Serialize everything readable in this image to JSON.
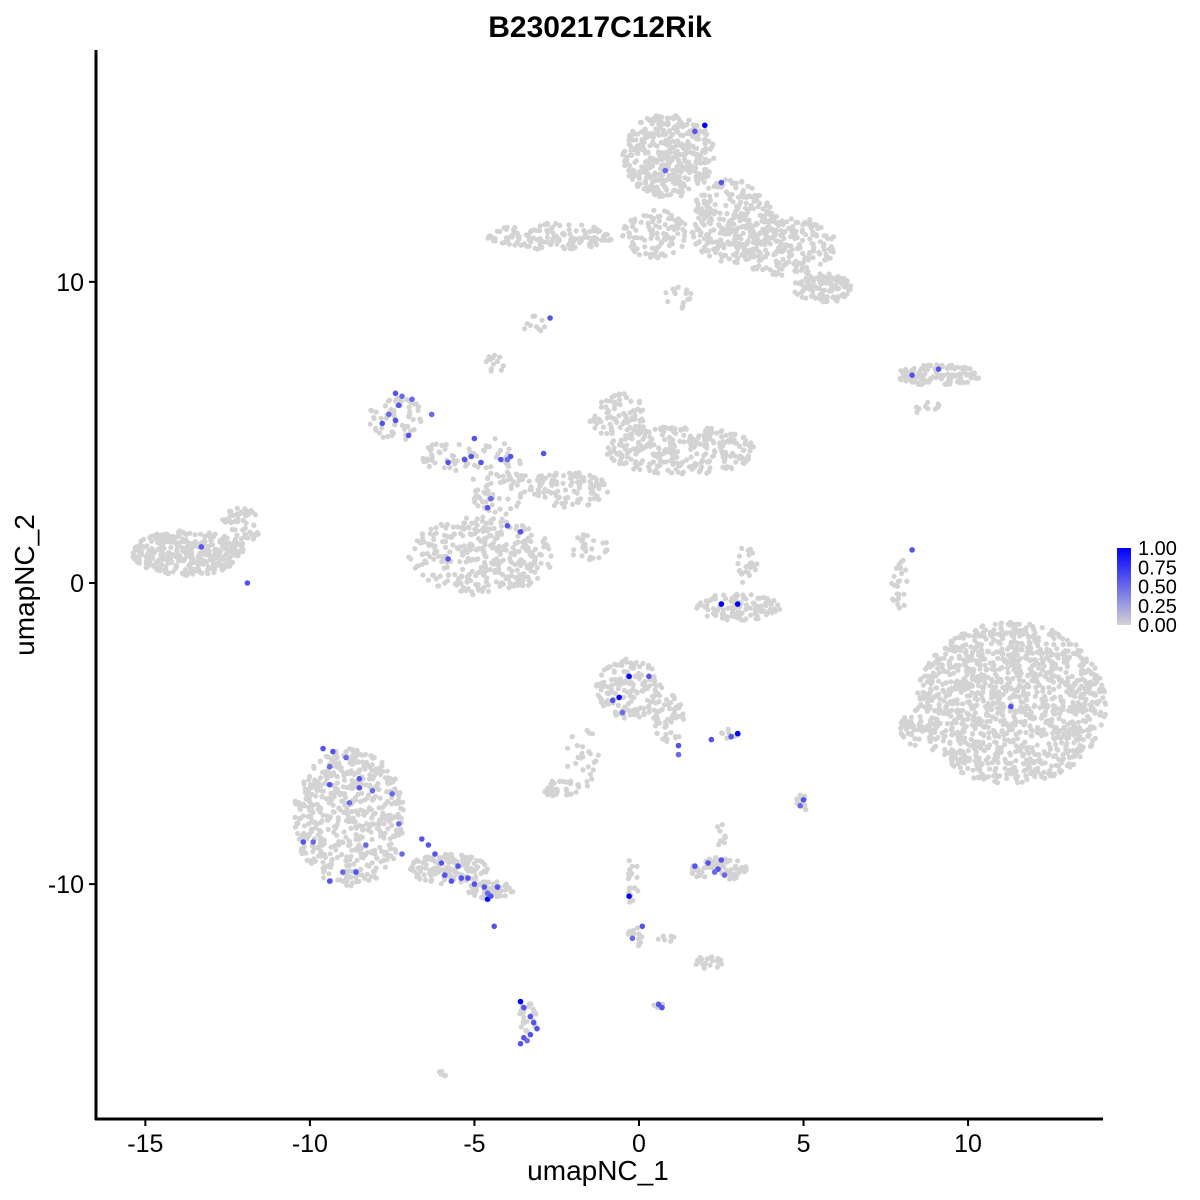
{
  "chart_data": {
    "type": "scatter",
    "title": "B230217C12Rik",
    "xlabel": "umapNC_1",
    "ylabel": "umapNC_2",
    "xlim": [
      -16.5,
      14.1
    ],
    "ylim": [
      -17.8,
      17.7
    ],
    "x_ticks": [
      -15,
      -10,
      -5,
      0,
      5,
      10
    ],
    "y_ticks": [
      -10,
      0,
      10
    ],
    "x_tick_labels": [
      "-15",
      "-10",
      "-5",
      "0",
      "5",
      "10"
    ],
    "y_tick_labels": [
      "-10",
      "0",
      "10"
    ],
    "grid": false,
    "legend_position": "right",
    "color_scale": {
      "low_color": "#d3d3d3",
      "high_color": "#0000ff",
      "min": 0.0,
      "max": 1.0,
      "breaks": [
        1.0,
        0.75,
        0.5,
        0.25,
        0.0
      ],
      "labels": [
        "1.00",
        "0.75",
        "0.50",
        "0.25",
        "0.00"
      ]
    },
    "background_clusters": [
      {
        "cx": 0.9,
        "cy": 14.2,
        "rx": 1.4,
        "ry": 1.4,
        "n": 420
      },
      {
        "cx": 2.8,
        "cy": 12.0,
        "rx": 1.3,
        "ry": 1.4,
        "n": 280
      },
      {
        "cx": 4.4,
        "cy": 11.2,
        "rx": 1.6,
        "ry": 1.0,
        "n": 220
      },
      {
        "cx": 5.6,
        "cy": 9.8,
        "rx": 0.9,
        "ry": 0.5,
        "n": 110
      },
      {
        "cx": 0.5,
        "cy": 11.6,
        "rx": 1.0,
        "ry": 0.8,
        "n": 100
      },
      {
        "cx": -2.7,
        "cy": 11.5,
        "rx": 1.9,
        "ry": 0.45,
        "n": 140
      },
      {
        "cx": 1.2,
        "cy": 9.5,
        "rx": 0.4,
        "ry": 0.5,
        "n": 15
      },
      {
        "cx": -3.2,
        "cy": 8.6,
        "rx": 0.35,
        "ry": 0.3,
        "n": 10
      },
      {
        "cx": -4.4,
        "cy": 7.3,
        "rx": 0.3,
        "ry": 0.35,
        "n": 15
      },
      {
        "cx": 9.1,
        "cy": 6.9,
        "rx": 1.3,
        "ry": 0.35,
        "n": 120
      },
      {
        "cx": 8.8,
        "cy": 5.8,
        "rx": 0.4,
        "ry": 0.3,
        "n": 10
      },
      {
        "cx": 1.3,
        "cy": 4.4,
        "rx": 2.3,
        "ry": 0.8,
        "n": 280
      },
      {
        "cx": -0.6,
        "cy": 5.5,
        "rx": 0.9,
        "ry": 0.8,
        "n": 90
      },
      {
        "cx": -2.2,
        "cy": 3.1,
        "rx": 1.3,
        "ry": 0.6,
        "n": 110
      },
      {
        "cx": -4.3,
        "cy": 3.5,
        "rx": 0.9,
        "ry": 1.3,
        "n": 90
      },
      {
        "cx": -4.8,
        "cy": 0.9,
        "rx": 2.2,
        "ry": 1.3,
        "n": 340
      },
      {
        "cx": -7.4,
        "cy": 5.5,
        "rx": 0.8,
        "ry": 0.8,
        "n": 60
      },
      {
        "cx": -5.8,
        "cy": 4.2,
        "rx": 0.8,
        "ry": 0.5,
        "n": 40
      },
      {
        "cx": -1.5,
        "cy": 1.2,
        "rx": 0.6,
        "ry": 0.5,
        "n": 25
      },
      {
        "cx": -13.7,
        "cy": 1.0,
        "rx": 1.7,
        "ry": 0.75,
        "n": 360
      },
      {
        "cx": -12.1,
        "cy": 1.9,
        "rx": 0.6,
        "ry": 0.6,
        "n": 50
      },
      {
        "cx": 3.0,
        "cy": -0.8,
        "rx": 1.3,
        "ry": 0.45,
        "n": 110
      },
      {
        "cx": 3.2,
        "cy": 0.6,
        "rx": 0.4,
        "ry": 0.6,
        "n": 25
      },
      {
        "cx": 7.9,
        "cy": 0.0,
        "rx": 0.25,
        "ry": 1.0,
        "n": 25
      },
      {
        "cx": 11.3,
        "cy": -4.0,
        "rx": 2.9,
        "ry": 2.7,
        "n": 1300
      },
      {
        "cx": 8.4,
        "cy": -4.8,
        "rx": 0.5,
        "ry": 0.6,
        "n": 40
      },
      {
        "cx": -0.3,
        "cy": -3.5,
        "rx": 1.0,
        "ry": 1.0,
        "n": 160
      },
      {
        "cx": 0.9,
        "cy": -4.5,
        "rx": 0.5,
        "ry": 0.8,
        "n": 60
      },
      {
        "cx": -1.7,
        "cy": -5.8,
        "rx": 0.5,
        "ry": 1.0,
        "n": 25
      },
      {
        "cx": -2.4,
        "cy": -6.8,
        "rx": 0.6,
        "ry": 0.3,
        "n": 40
      },
      {
        "cx": 2.8,
        "cy": -5.0,
        "rx": 0.3,
        "ry": 0.2,
        "n": 10
      },
      {
        "cx": 5.0,
        "cy": -7.3,
        "rx": 0.25,
        "ry": 0.3,
        "n": 12
      },
      {
        "cx": 2.4,
        "cy": -9.5,
        "rx": 0.9,
        "ry": 0.4,
        "n": 70
      },
      {
        "cx": 2.5,
        "cy": -8.3,
        "rx": 0.2,
        "ry": 0.5,
        "n": 10
      },
      {
        "cx": -8.8,
        "cy": -7.8,
        "rx": 1.7,
        "ry": 2.3,
        "n": 560
      },
      {
        "cx": -5.8,
        "cy": -9.5,
        "rx": 1.2,
        "ry": 0.5,
        "n": 130
      },
      {
        "cx": -4.5,
        "cy": -10.2,
        "rx": 0.7,
        "ry": 0.3,
        "n": 60
      },
      {
        "cx": -0.2,
        "cy": -10.0,
        "rx": 0.2,
        "ry": 0.9,
        "n": 20
      },
      {
        "cx": -0.1,
        "cy": -11.7,
        "rx": 0.25,
        "ry": 0.4,
        "n": 15
      },
      {
        "cx": 2.1,
        "cy": -12.6,
        "rx": 0.5,
        "ry": 0.2,
        "n": 25
      },
      {
        "cx": 0.8,
        "cy": -11.8,
        "rx": 0.3,
        "ry": 0.15,
        "n": 6
      },
      {
        "cx": -3.4,
        "cy": -14.4,
        "rx": 0.3,
        "ry": 0.6,
        "n": 25
      },
      {
        "cx": 0.6,
        "cy": -14.0,
        "rx": 0.15,
        "ry": 0.15,
        "n": 5
      },
      {
        "cx": -6.0,
        "cy": -16.3,
        "rx": 0.15,
        "ry": 0.1,
        "n": 5
      }
    ],
    "expressing_points": [
      {
        "x": 2.0,
        "y": 15.2,
        "v": 1.0
      },
      {
        "x": 1.7,
        "y": 15.0,
        "v": 0.6
      },
      {
        "x": 0.8,
        "y": 13.7,
        "v": 0.5
      },
      {
        "x": 2.5,
        "y": 13.3,
        "v": 0.6
      },
      {
        "x": -2.7,
        "y": 8.8,
        "v": 0.6
      },
      {
        "x": 8.3,
        "y": 6.9,
        "v": 0.6
      },
      {
        "x": 9.1,
        "y": 7.1,
        "v": 0.6
      },
      {
        "x": -7.4,
        "y": 6.3,
        "v": 0.6
      },
      {
        "x": -7.2,
        "y": 6.2,
        "v": 0.5
      },
      {
        "x": -7.3,
        "y": 5.9,
        "v": 0.6
      },
      {
        "x": -7.6,
        "y": 5.6,
        "v": 0.5
      },
      {
        "x": -7.8,
        "y": 5.3,
        "v": 0.6
      },
      {
        "x": -7.4,
        "y": 5.4,
        "v": 0.6
      },
      {
        "x": -7.0,
        "y": 4.9,
        "v": 0.6
      },
      {
        "x": -6.3,
        "y": 5.6,
        "v": 0.5
      },
      {
        "x": -6.9,
        "y": 6.1,
        "v": 0.5
      },
      {
        "x": -5.0,
        "y": 4.8,
        "v": 0.6
      },
      {
        "x": -5.1,
        "y": 4.2,
        "v": 0.6
      },
      {
        "x": -5.3,
        "y": 4.1,
        "v": 0.6
      },
      {
        "x": -4.8,
        "y": 4.0,
        "v": 0.6
      },
      {
        "x": -5.8,
        "y": 4.0,
        "v": 0.6
      },
      {
        "x": -4.2,
        "y": 4.1,
        "v": 0.6
      },
      {
        "x": -3.9,
        "y": 4.2,
        "v": 0.6
      },
      {
        "x": -4.0,
        "y": 4.1,
        "v": 0.5
      },
      {
        "x": -2.9,
        "y": 4.3,
        "v": 0.6
      },
      {
        "x": -4.6,
        "y": 2.5,
        "v": 0.6
      },
      {
        "x": -4.0,
        "y": 1.9,
        "v": 0.6
      },
      {
        "x": -3.6,
        "y": 1.7,
        "v": 0.6
      },
      {
        "x": -5.8,
        "y": 0.8,
        "v": 0.6
      },
      {
        "x": -4.5,
        "y": 2.8,
        "v": 0.5
      },
      {
        "x": -13.3,
        "y": 1.2,
        "v": 0.6
      },
      {
        "x": -11.9,
        "y": 0.0,
        "v": 0.6
      },
      {
        "x": 2.5,
        "y": -0.7,
        "v": 1.0
      },
      {
        "x": 3.0,
        "y": -0.7,
        "v": 1.0
      },
      {
        "x": 8.3,
        "y": 1.1,
        "v": 0.6
      },
      {
        "x": 11.3,
        "y": -4.1,
        "v": 0.6
      },
      {
        "x": -0.3,
        "y": -3.1,
        "v": 1.0
      },
      {
        "x": -0.6,
        "y": -3.8,
        "v": 1.0
      },
      {
        "x": -0.8,
        "y": -3.9,
        "v": 0.6
      },
      {
        "x": 0.3,
        "y": -3.1,
        "v": 0.6
      },
      {
        "x": -0.5,
        "y": -4.3,
        "v": 0.5
      },
      {
        "x": 1.2,
        "y": -5.4,
        "v": 0.6
      },
      {
        "x": 1.2,
        "y": -5.7,
        "v": 0.5
      },
      {
        "x": 2.2,
        "y": -5.2,
        "v": 0.6
      },
      {
        "x": 3.0,
        "y": -5.0,
        "v": 1.0
      },
      {
        "x": 2.8,
        "y": -5.1,
        "v": 0.6
      },
      {
        "x": 5.0,
        "y": -7.2,
        "v": 0.6
      },
      {
        "x": 4.9,
        "y": -7.4,
        "v": 0.5
      },
      {
        "x": 1.7,
        "y": -9.4,
        "v": 0.6
      },
      {
        "x": 2.1,
        "y": -9.3,
        "v": 0.6
      },
      {
        "x": 2.4,
        "y": -9.5,
        "v": 0.6
      },
      {
        "x": 2.5,
        "y": -9.2,
        "v": 0.6
      },
      {
        "x": 2.6,
        "y": -9.7,
        "v": 0.5
      },
      {
        "x": 2.3,
        "y": -9.6,
        "v": 0.5
      },
      {
        "x": -9.6,
        "y": -5.5,
        "v": 0.6
      },
      {
        "x": -9.3,
        "y": -5.6,
        "v": 0.6
      },
      {
        "x": -9.4,
        "y": -6.1,
        "v": 0.5
      },
      {
        "x": -8.9,
        "y": -5.8,
        "v": 0.5
      },
      {
        "x": -8.5,
        "y": -6.5,
        "v": 0.6
      },
      {
        "x": -8.5,
        "y": -6.8,
        "v": 0.6
      },
      {
        "x": -9.4,
        "y": -6.7,
        "v": 0.6
      },
      {
        "x": -8.1,
        "y": -6.9,
        "v": 0.5
      },
      {
        "x": -7.5,
        "y": -7.0,
        "v": 0.5
      },
      {
        "x": -8.8,
        "y": -7.3,
        "v": 0.5
      },
      {
        "x": -7.3,
        "y": -8.0,
        "v": 0.5
      },
      {
        "x": -10.2,
        "y": -8.6,
        "v": 0.6
      },
      {
        "x": -9.9,
        "y": -8.6,
        "v": 0.5
      },
      {
        "x": -8.3,
        "y": -8.7,
        "v": 0.5
      },
      {
        "x": -8.6,
        "y": -9.6,
        "v": 0.6
      },
      {
        "x": -9.0,
        "y": -9.6,
        "v": 0.5
      },
      {
        "x": -9.4,
        "y": -9.9,
        "v": 0.6
      },
      {
        "x": -7.2,
        "y": -9.0,
        "v": 0.5
      },
      {
        "x": -6.6,
        "y": -8.5,
        "v": 0.6
      },
      {
        "x": -6.4,
        "y": -8.7,
        "v": 0.6
      },
      {
        "x": -6.2,
        "y": -9.0,
        "v": 0.6
      },
      {
        "x": -6.0,
        "y": -9.3,
        "v": 0.6
      },
      {
        "x": -5.9,
        "y": -9.7,
        "v": 0.6
      },
      {
        "x": -5.5,
        "y": -9.4,
        "v": 0.6
      },
      {
        "x": -5.7,
        "y": -9.9,
        "v": 0.6
      },
      {
        "x": -5.4,
        "y": -9.8,
        "v": 0.6
      },
      {
        "x": -5.2,
        "y": -9.8,
        "v": 0.6
      },
      {
        "x": -5.0,
        "y": -10.0,
        "v": 0.6
      },
      {
        "x": -4.7,
        "y": -10.1,
        "v": 0.6
      },
      {
        "x": -4.6,
        "y": -10.3,
        "v": 0.5
      },
      {
        "x": -4.6,
        "y": -10.5,
        "v": 1.0
      },
      {
        "x": -4.5,
        "y": -10.4,
        "v": 0.6
      },
      {
        "x": -4.3,
        "y": -10.1,
        "v": 0.6
      },
      {
        "x": -4.4,
        "y": -11.4,
        "v": 0.6
      },
      {
        "x": -0.3,
        "y": -10.4,
        "v": 1.0
      },
      {
        "x": 0.1,
        "y": -11.4,
        "v": 0.6
      },
      {
        "x": -0.2,
        "y": -11.8,
        "v": 0.5
      },
      {
        "x": -3.6,
        "y": -13.9,
        "v": 1.0
      },
      {
        "x": -3.5,
        "y": -14.1,
        "v": 0.6
      },
      {
        "x": -3.3,
        "y": -14.4,
        "v": 0.6
      },
      {
        "x": -3.2,
        "y": -14.6,
        "v": 0.6
      },
      {
        "x": -3.1,
        "y": -14.8,
        "v": 0.6
      },
      {
        "x": -3.3,
        "y": -15.0,
        "v": 0.6
      },
      {
        "x": -3.5,
        "y": -15.1,
        "v": 0.6
      },
      {
        "x": -3.6,
        "y": -15.3,
        "v": 0.6
      },
      {
        "x": -3.4,
        "y": -15.2,
        "v": 0.5
      },
      {
        "x": 0.6,
        "y": -14.0,
        "v": 0.6
      },
      {
        "x": 0.7,
        "y": -14.1,
        "v": 0.6
      }
    ]
  }
}
